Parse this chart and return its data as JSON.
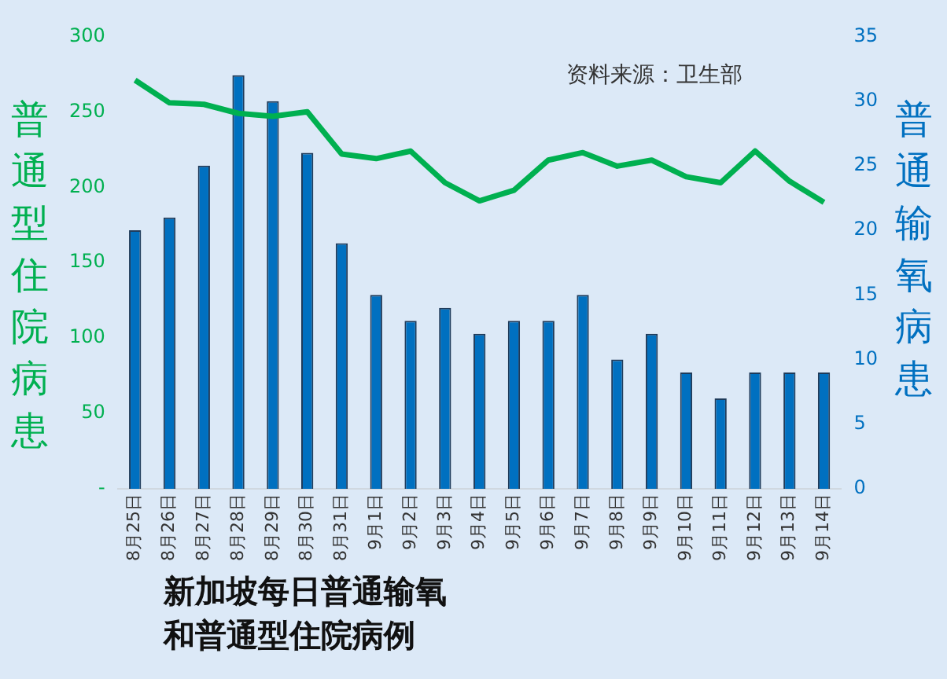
{
  "chart_data": {
    "type": "bar",
    "title": "新加坡每日普通输氧和普通型住院病例",
    "ylabel": "普通型住院病患",
    "y2label": "普通输氧病患",
    "annotations": [
      "资料来源：卫生部"
    ],
    "categories": [
      "8月25日",
      "8月26日",
      "8月27日",
      "8月28日",
      "8月29日",
      "8月30日",
      "8月31日",
      "9月1日",
      "9月2日",
      "9月3日",
      "9月4日",
      "9月5日",
      "9月6日",
      "9月7日",
      "9月8日",
      "9月9日",
      "9月10日",
      "9月11日",
      "9月12日",
      "9月13日",
      "9月14日"
    ],
    "series": [
      {
        "axis": "y2",
        "color": "#0070c0",
        "values": [
          20,
          21,
          25,
          32,
          30,
          26,
          19,
          15,
          13,
          14,
          12,
          13,
          13,
          15,
          10,
          12,
          9,
          7,
          9,
          9,
          9
        ]
      },
      {
        "type": "line",
        "axis": "y",
        "color": "#00b050",
        "marker": "none",
        "line_style": "solid",
        "values": [
          271,
          256,
          255,
          249,
          247,
          250,
          222,
          219,
          224,
          203,
          191,
          198,
          218,
          223,
          214,
          218,
          207,
          203,
          224,
          204,
          190
        ]
      }
    ],
    "ylim": [
      0,
      300
    ],
    "yticks": [
      {
        "value": 0,
        "label": "-"
      },
      50,
      100,
      150,
      200,
      250,
      300
    ],
    "y2lim": [
      0,
      35
    ],
    "y2ticks": [
      0,
      5,
      10,
      15,
      20,
      25,
      30,
      35
    ],
    "grid": false,
    "legend": false
  }
}
